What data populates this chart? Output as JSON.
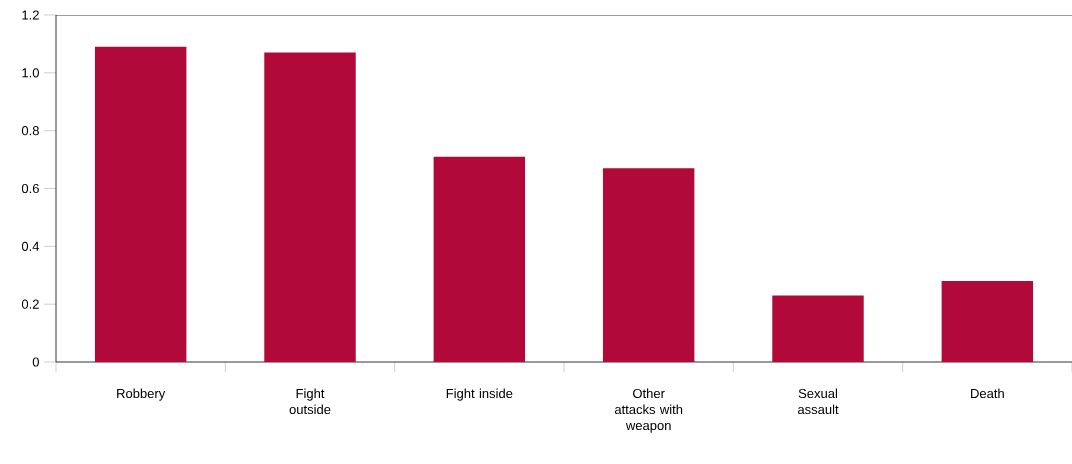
{
  "chart_data": {
    "type": "bar",
    "categories": [
      "Robbery",
      "Fight outside",
      "Fight inside",
      "Other attacks with weapon",
      "Sexual assault",
      "Death"
    ],
    "values": [
      1.09,
      1.07,
      0.71,
      0.67,
      0.23,
      0.28
    ],
    "color": "#b0093a",
    "ylim": [
      0,
      1.2
    ],
    "yticks": [
      0,
      {
        "value": 0.2,
        "label": "0.2"
      },
      {
        "value": 0.4,
        "label": "0.4"
      },
      {
        "value": 0.6,
        "label": "0.6"
      },
      {
        "value": 0.8,
        "label": "0.8"
      },
      {
        "value": 1.0,
        "label": "1.0"
      },
      {
        "value": 1.2,
        "label": "1.2"
      }
    ],
    "grid": false
  }
}
